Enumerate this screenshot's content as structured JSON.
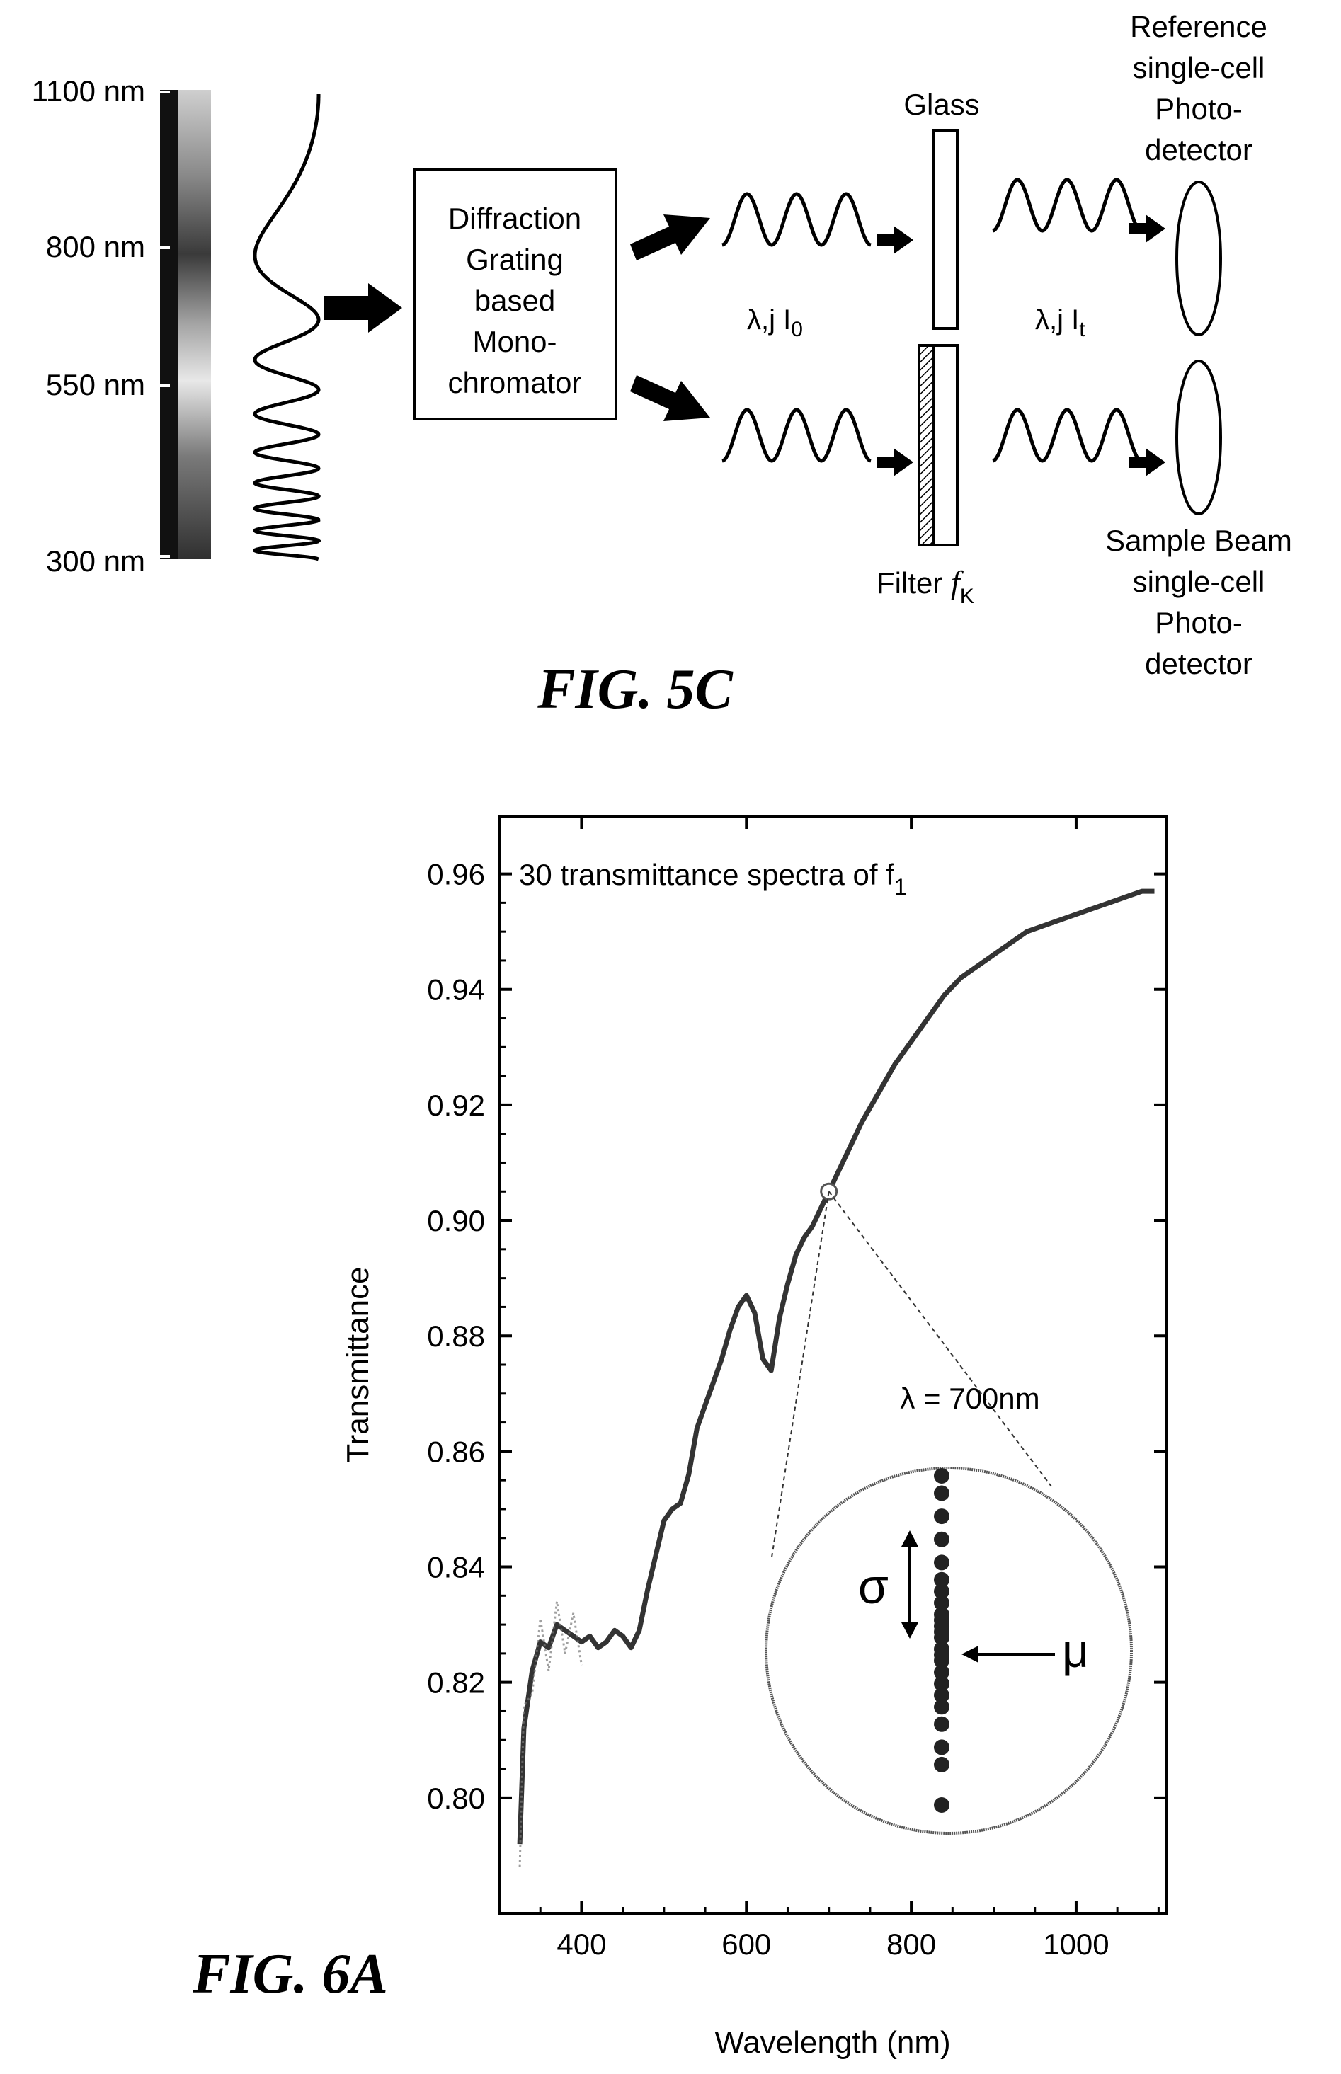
{
  "fig5c": {
    "caption": "FIG. 5C",
    "scale_labels": [
      "1100 nm",
      "800 nm",
      "550 nm",
      "300 nm"
    ],
    "monochromator": [
      "Diffraction",
      "Grating",
      "based",
      "Mono-",
      "chromator"
    ],
    "glass_label": "Glass",
    "filter_label": "Filter",
    "filter_symbol": "f",
    "filter_sub": "K",
    "incident_label": "λ,j I",
    "incident_sub": "0",
    "transmitted_label": "λ,j I",
    "transmitted_sub": "t",
    "reference_detector": [
      "Reference",
      "single-cell",
      "Photo-",
      "detector"
    ],
    "sample_detector": [
      "Sample Beam",
      "single-cell",
      "Photo-",
      "detector"
    ]
  },
  "fig6a": {
    "caption": "FIG. 6A",
    "legend": "30 transmittance spectra of f",
    "legend_sub": "1",
    "annotation": "λ = 700nm",
    "sigma_label": "σ",
    "mu_label": "μ"
  },
  "chart_data": {
    "type": "line",
    "title": "30 transmittance spectra of f1",
    "xlabel": "Wavelength (nm)",
    "ylabel": "Transmittance",
    "xlim": [
      300,
      1110
    ],
    "ylim": [
      0.78,
      0.97
    ],
    "x_ticks": [
      400,
      600,
      800,
      1000
    ],
    "y_ticks": [
      0.8,
      0.82,
      0.84,
      0.86,
      0.88,
      0.9,
      0.92,
      0.94,
      0.96
    ],
    "x_tick_labels": [
      "400",
      "600",
      "800",
      "1000"
    ],
    "y_tick_labels": [
      "0.80",
      "0.82",
      "0.84",
      "0.86",
      "0.88",
      "0.90",
      "0.92",
      "0.94",
      "0.96"
    ],
    "series": [
      {
        "x": [
          325,
          330,
          340,
          350,
          360,
          370,
          380,
          390,
          400,
          410,
          420,
          430,
          440,
          450,
          460,
          470,
          480,
          490,
          500,
          510,
          520,
          530,
          540,
          550,
          560,
          570,
          580,
          590,
          600,
          610,
          620,
          630,
          640,
          650,
          660,
          670,
          680,
          690,
          700,
          720,
          740,
          760,
          780,
          800,
          820,
          840,
          860,
          880,
          900,
          920,
          940,
          960,
          980,
          1000,
          1020,
          1040,
          1060,
          1080,
          1095
        ],
        "y": [
          0.792,
          0.812,
          0.822,
          0.827,
          0.826,
          0.83,
          0.829,
          0.828,
          0.827,
          0.828,
          0.826,
          0.827,
          0.829,
          0.828,
          0.826,
          0.829,
          0.836,
          0.842,
          0.848,
          0.85,
          0.851,
          0.856,
          0.864,
          0.868,
          0.872,
          0.876,
          0.881,
          0.885,
          0.887,
          0.884,
          0.876,
          0.874,
          0.883,
          0.889,
          0.894,
          0.897,
          0.899,
          0.902,
          0.905,
          0.911,
          0.917,
          0.922,
          0.927,
          0.931,
          0.935,
          0.939,
          0.942,
          0.944,
          0.946,
          0.948,
          0.95,
          0.951,
          0.952,
          0.953,
          0.954,
          0.955,
          0.956,
          0.957,
          0.957
        ]
      }
    ],
    "highlight_point": {
      "x": 700,
      "y": 0.905
    },
    "inset_samples": [
      0.86,
      0.857,
      0.853,
      0.849,
      0.845,
      0.842,
      0.84,
      0.838,
      0.836,
      0.835,
      0.834,
      0.833,
      0.832,
      0.83,
      0.829,
      0.828,
      0.826,
      0.824,
      0.822,
      0.82,
      0.817,
      0.813,
      0.81,
      0.803
    ],
    "inset_mean": 0.8302,
    "grid": false
  }
}
